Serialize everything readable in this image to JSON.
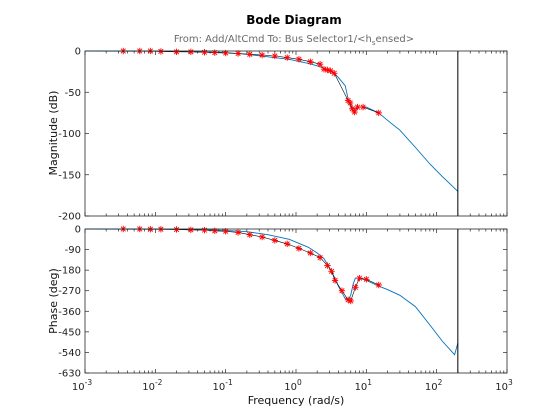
{
  "chart_data": {
    "type": "line",
    "title": "Bode Diagram",
    "subtitle_prefix": "From: Add/AltCmd  To: Bus Selector1/<h",
    "subtitle_sub": "s",
    "subtitle_suffix": "ensed>",
    "xlabel": "Frequency  (rad/s)",
    "xscale": "log",
    "xlim": [
      0.001,
      1000
    ],
    "x_ticks": [
      0.001,
      0.01,
      0.1,
      1,
      10,
      100,
      1000
    ],
    "x_tick_bases": [
      "10",
      "10",
      "10",
      "10",
      "10",
      "10",
      "10"
    ],
    "x_tick_exps": [
      "-3",
      "-2",
      "-1",
      "0",
      "1",
      "2",
      "3"
    ],
    "vertical_marker_x": 200,
    "colors": {
      "line": "#0072bd",
      "marker": "#ff0000",
      "marker_line": "#000000",
      "axes": "#262626"
    },
    "magnitude": {
      "ylabel": "Magnitude (dB)",
      "ylim": [
        -200,
        0
      ],
      "y_ticks": [
        0,
        -50,
        -100,
        -150,
        -200
      ],
      "y_tick_labels": [
        "0",
        "-50",
        "-100",
        "-150",
        "-200"
      ],
      "line": {
        "x": [
          0.001,
          0.01,
          0.03,
          0.1,
          0.2,
          0.4,
          0.8,
          1.5,
          2,
          2.5,
          3,
          3.5,
          4,
          5,
          5.5,
          6,
          7,
          8,
          10,
          15,
          20,
          30,
          50,
          80,
          120,
          200
        ],
        "y": [
          0,
          -0.3,
          -0.8,
          -2,
          -4,
          -7,
          -10,
          -15,
          -18,
          -21,
          -24,
          -27,
          -32,
          -42,
          -58,
          -68,
          -70,
          -68,
          -68,
          -75,
          -84,
          -96,
          -117,
          -137,
          -152,
          -170
        ]
      },
      "markers": {
        "x": [
          0.0035,
          0.006,
          0.0085,
          0.012,
          0.02,
          0.032,
          0.05,
          0.07,
          0.1,
          0.15,
          0.22,
          0.33,
          0.5,
          0.75,
          1.1,
          1.6,
          2.2,
          2.5,
          2.8,
          3.1,
          3.5,
          5.5,
          5.9,
          6.3,
          6.8,
          7.5,
          9,
          15
        ],
        "y": [
          0,
          0,
          0,
          -0.5,
          -1,
          -1,
          -1.5,
          -2,
          -2.5,
          -3,
          -4,
          -5,
          -6,
          -8,
          -10,
          -13,
          -16,
          -22,
          -23,
          -24,
          -27,
          -60,
          -63,
          -70,
          -74,
          -68,
          -68,
          -75
        ]
      }
    },
    "phase": {
      "ylabel": "Phase (deg)",
      "ylim": [
        -630,
        0
      ],
      "y_ticks": [
        0,
        -90,
        -180,
        -270,
        -360,
        -450,
        -540,
        -630
      ],
      "y_tick_labels": [
        "0",
        "-90",
        "-180",
        "-270",
        "-360",
        "-450",
        "-540",
        "-630"
      ],
      "line": {
        "x": [
          0.001,
          0.01,
          0.05,
          0.1,
          0.2,
          0.4,
          0.8,
          1.5,
          2,
          2.5,
          3,
          3.5,
          4,
          5,
          5.5,
          6,
          6.5,
          7,
          8,
          10,
          15,
          20,
          30,
          50,
          80,
          120,
          180,
          200
        ],
        "y": [
          0,
          -1,
          -3,
          -6,
          -12,
          -25,
          -45,
          -80,
          -105,
          -130,
          -170,
          -210,
          -250,
          -305,
          -310,
          -290,
          -240,
          -215,
          -215,
          -225,
          -250,
          -265,
          -290,
          -340,
          -420,
          -490,
          -550,
          -500
        ]
      },
      "markers": {
        "x": [
          0.0035,
          0.006,
          0.0085,
          0.012,
          0.02,
          0.032,
          0.05,
          0.07,
          0.1,
          0.15,
          0.22,
          0.33,
          0.5,
          0.75,
          1.1,
          1.6,
          2.2,
          2.8,
          3.2,
          3.6,
          4.5,
          5.5,
          6,
          7,
          8,
          10,
          15
        ],
        "y": [
          0,
          0,
          -1,
          -1,
          -2,
          -4,
          -5,
          -8,
          -10,
          -15,
          -25,
          -35,
          -50,
          -65,
          -85,
          -105,
          -125,
          -160,
          -185,
          -225,
          -270,
          -310,
          -315,
          -255,
          -215,
          -220,
          -245
        ]
      }
    }
  }
}
